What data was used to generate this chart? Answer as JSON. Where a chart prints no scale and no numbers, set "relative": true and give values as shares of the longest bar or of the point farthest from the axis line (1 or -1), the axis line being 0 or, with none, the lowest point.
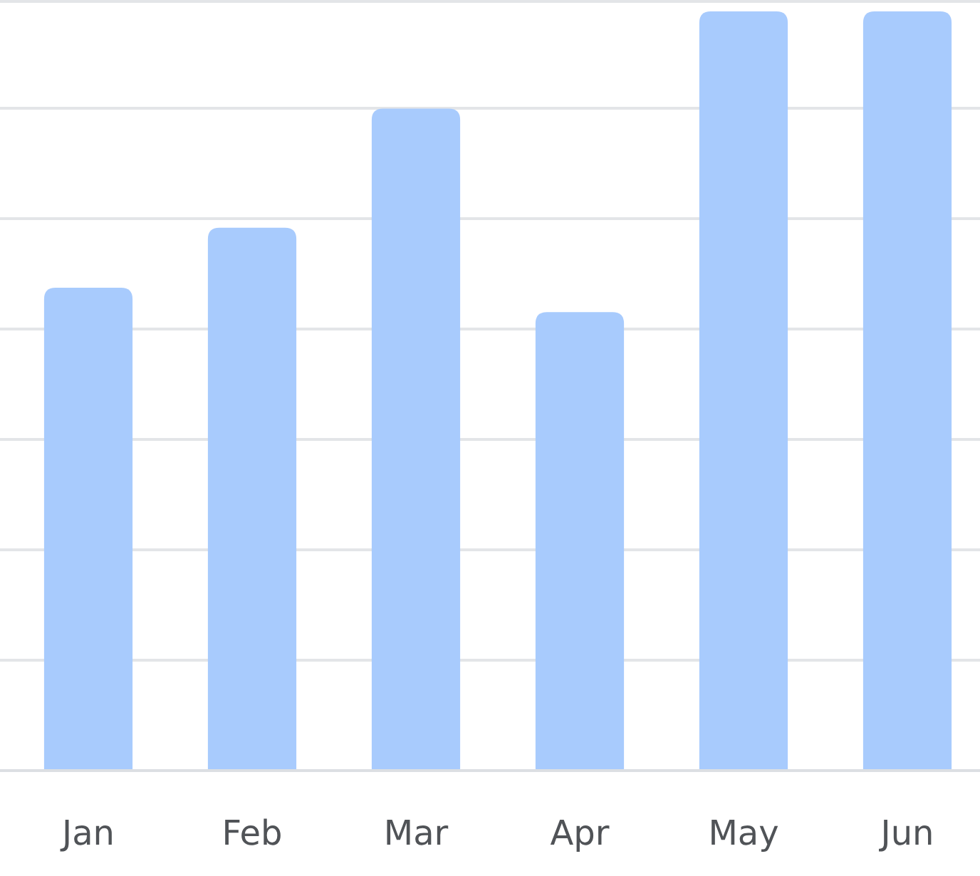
{
  "chart_data": {
    "type": "bar",
    "relative": true,
    "categories": [
      "Jan",
      "Feb",
      "Mar",
      "Apr",
      "May",
      "Jun"
    ],
    "values": [
      0.636,
      0.715,
      0.872,
      0.604,
      1,
      1
    ],
    "color": "#a8cbfd",
    "grid": true
  }
}
